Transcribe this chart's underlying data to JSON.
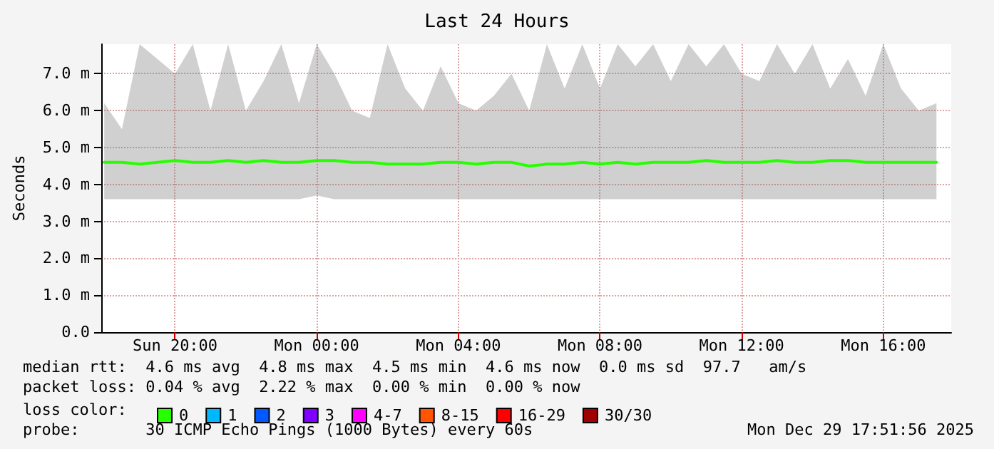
{
  "chart_data": {
    "type": "line",
    "title": "Last 24 Hours",
    "ylabel": "Seconds",
    "x": [
      "2025-12-28T18:00",
      "2025-12-28T18:30",
      "2025-12-28T19:00",
      "2025-12-28T19:30",
      "2025-12-28T20:00",
      "2025-12-28T20:30",
      "2025-12-28T21:00",
      "2025-12-28T21:30",
      "2025-12-28T22:00",
      "2025-12-28T22:30",
      "2025-12-28T23:00",
      "2025-12-28T23:30",
      "2025-12-29T00:00",
      "2025-12-29T00:30",
      "2025-12-29T01:00",
      "2025-12-29T01:30",
      "2025-12-29T02:00",
      "2025-12-29T02:30",
      "2025-12-29T03:00",
      "2025-12-29T03:30",
      "2025-12-29T04:00",
      "2025-12-29T04:30",
      "2025-12-29T05:00",
      "2025-12-29T05:30",
      "2025-12-29T06:00",
      "2025-12-29T06:30",
      "2025-12-29T07:00",
      "2025-12-29T07:30",
      "2025-12-29T08:00",
      "2025-12-29T08:30",
      "2025-12-29T09:00",
      "2025-12-29T09:30",
      "2025-12-29T10:00",
      "2025-12-29T10:30",
      "2025-12-29T11:00",
      "2025-12-29T11:30",
      "2025-12-29T12:00",
      "2025-12-29T12:30",
      "2025-12-29T13:00",
      "2025-12-29T13:30",
      "2025-12-29T14:00",
      "2025-12-29T14:30",
      "2025-12-29T15:00",
      "2025-12-29T15:30",
      "2025-12-29T16:00",
      "2025-12-29T16:30",
      "2025-12-29T17:00",
      "2025-12-29T17:30"
    ],
    "series": [
      {
        "name": "0",
        "color": "#26ff00",
        "values": [
          4.6,
          4.6,
          4.55,
          4.6,
          4.65,
          4.6,
          4.6,
          4.65,
          4.6,
          4.65,
          4.6,
          4.6,
          4.65,
          4.65,
          4.6,
          4.6,
          4.55,
          4.55,
          4.55,
          4.6,
          4.6,
          4.55,
          4.6,
          4.6,
          4.5,
          4.55,
          4.55,
          4.6,
          4.55,
          4.6,
          4.55,
          4.6,
          4.6,
          4.6,
          4.65,
          4.6,
          4.6,
          4.6,
          4.65,
          4.6,
          4.6,
          4.65,
          4.65,
          4.6,
          4.6,
          4.6,
          4.6,
          4.6
        ],
        "lower": [
          3.6,
          3.6,
          3.6,
          3.6,
          3.6,
          3.6,
          3.6,
          3.6,
          3.6,
          3.6,
          3.6,
          3.6,
          3.7,
          3.6,
          3.6,
          3.6,
          3.6,
          3.6,
          3.6,
          3.6,
          3.6,
          3.6,
          3.6,
          3.6,
          3.6,
          3.6,
          3.6,
          3.6,
          3.6,
          3.6,
          3.6,
          3.6,
          3.6,
          3.6,
          3.6,
          3.6,
          3.6,
          3.6,
          3.6,
          3.6,
          3.6,
          3.6,
          3.6,
          3.6,
          3.6,
          3.6,
          3.6,
          3.6
        ],
        "upper": [
          6.2,
          5.5,
          7.8,
          7.4,
          7.0,
          7.8,
          6.0,
          7.8,
          6.0,
          6.8,
          7.8,
          6.2,
          7.8,
          7.0,
          6.0,
          5.8,
          7.8,
          6.6,
          6.0,
          7.2,
          6.2,
          6.0,
          6.4,
          7.0,
          6.0,
          7.8,
          6.6,
          7.8,
          6.6,
          7.8,
          7.2,
          7.8,
          6.8,
          7.8,
          7.2,
          7.8,
          7.0,
          6.8,
          7.8,
          7.0,
          7.8,
          6.6,
          7.4,
          6.4,
          7.8,
          6.6,
          6.0,
          6.2
        ]
      },
      {
        "name": "1",
        "color": "#00b8ff",
        "values": [
          null,
          null,
          null,
          null,
          null,
          null,
          null,
          null,
          null,
          null,
          null,
          null,
          null,
          null,
          null,
          null,
          null,
          null,
          null,
          null,
          null,
          null,
          null,
          null,
          null,
          null,
          null,
          null,
          null,
          null,
          null,
          null,
          null,
          null,
          null,
          null,
          null,
          null,
          null,
          null,
          null,
          null,
          null,
          null,
          null,
          null,
          null,
          null
        ]
      },
      {
        "name": "2",
        "color": "#0059ff",
        "values": [
          null,
          null,
          null,
          null,
          null,
          null,
          null,
          null,
          null,
          null,
          null,
          null,
          null,
          null,
          null,
          null,
          null,
          null,
          null,
          null,
          null,
          null,
          null,
          null,
          null,
          null,
          null,
          null,
          null,
          null,
          null,
          null,
          null,
          null,
          null,
          null,
          null,
          null,
          null,
          null,
          null,
          null,
          null,
          null,
          null,
          null,
          null,
          null
        ]
      },
      {
        "name": "3",
        "color": "#7e00ff",
        "values": [
          null,
          null,
          null,
          null,
          null,
          null,
          null,
          null,
          null,
          null,
          null,
          null,
          null,
          null,
          null,
          null,
          null,
          null,
          null,
          null,
          null,
          null,
          null,
          null,
          null,
          null,
          null,
          null,
          null,
          null,
          null,
          null,
          null,
          null,
          null,
          null,
          null,
          null,
          null,
          null,
          null,
          null,
          null,
          null,
          null,
          null,
          null,
          null
        ]
      },
      {
        "name": "4-7",
        "color": "#ff00ff",
        "values": [
          null,
          null,
          null,
          null,
          null,
          null,
          null,
          null,
          null,
          null,
          null,
          null,
          null,
          null,
          null,
          null,
          null,
          null,
          null,
          null,
          null,
          null,
          null,
          null,
          null,
          null,
          null,
          null,
          null,
          null,
          null,
          null,
          null,
          null,
          null,
          null,
          null,
          null,
          null,
          null,
          null,
          null,
          null,
          null,
          null,
          null,
          null,
          null
        ]
      },
      {
        "name": "8-15",
        "color": "#ff5500",
        "values": [
          null,
          null,
          null,
          null,
          null,
          null,
          null,
          null,
          null,
          null,
          null,
          null,
          null,
          null,
          null,
          null,
          null,
          null,
          null,
          null,
          null,
          null,
          null,
          null,
          null,
          null,
          null,
          null,
          null,
          null,
          null,
          null,
          null,
          null,
          null,
          null,
          null,
          null,
          null,
          null,
          null,
          null,
          null,
          null,
          null,
          null,
          null,
          null
        ]
      },
      {
        "name": "16-29",
        "color": "#ff0000",
        "values": [
          null,
          null,
          null,
          null,
          null,
          null,
          null,
          null,
          null,
          null,
          null,
          null,
          null,
          null,
          null,
          null,
          null,
          null,
          null,
          null,
          null,
          null,
          null,
          null,
          null,
          null,
          null,
          null,
          null,
          null,
          null,
          null,
          null,
          null,
          null,
          null,
          null,
          null,
          null,
          null,
          null,
          null,
          null,
          null,
          null,
          null,
          null,
          null
        ]
      },
      {
        "name": "30/30",
        "color": "#a10000",
        "values": [
          null,
          null,
          null,
          null,
          null,
          null,
          null,
          null,
          null,
          null,
          null,
          null,
          null,
          null,
          null,
          null,
          null,
          null,
          null,
          null,
          null,
          null,
          null,
          null,
          null,
          null,
          null,
          null,
          null,
          null,
          null,
          null,
          null,
          null,
          null,
          null,
          null,
          null,
          null,
          null,
          null,
          null,
          null,
          null,
          null,
          null,
          null,
          null
        ]
      }
    ],
    "legend_title": "loss color:",
    "legend": "bottom",
    "xlim": [
      "2025-12-28T17:55",
      "2025-12-29T17:55"
    ],
    "xticks": [
      {
        "value": "2025-12-28T20:00",
        "label": "Sun 20:00"
      },
      {
        "value": "2025-12-29T00:00",
        "label": "Mon 00:00"
      },
      {
        "value": "2025-12-29T04:00",
        "label": "Mon 04:00"
      },
      {
        "value": "2025-12-29T08:00",
        "label": "Mon 08:00"
      },
      {
        "value": "2025-12-29T12:00",
        "label": "Mon 12:00"
      },
      {
        "value": "2025-12-29T16:00",
        "label": "Mon 16:00"
      }
    ],
    "ylim": [
      0,
      7.8
    ],
    "yticks": [
      {
        "value": 0,
        "label": "0.0"
      },
      {
        "value": 1,
        "label": "1.0 m"
      },
      {
        "value": 2,
        "label": "2.0 m"
      },
      {
        "value": 3,
        "label": "3.0 m"
      },
      {
        "value": 4,
        "label": "4.0 m"
      },
      {
        "value": 5,
        "label": "5.0 m"
      },
      {
        "value": 6,
        "label": "6.0 m"
      },
      {
        "value": 7,
        "label": "7.0 m"
      }
    ],
    "grid": true,
    "marker": "none",
    "line_style": "solid",
    "annotations": [
      "median rtt:  4.6 ms avg  4.8 ms max  4.5 ms min  4.6 ms now  0.0 ms sd  97.7   am/s",
      "packet loss: 0.04 % avg  2.22 % max  0.00 % min  0.00 % now",
      "probe:       30 ICMP Echo Pings (1000 Bytes) every 60s",
      "Mon Dec 29 17:51:56 2025"
    ]
  }
}
